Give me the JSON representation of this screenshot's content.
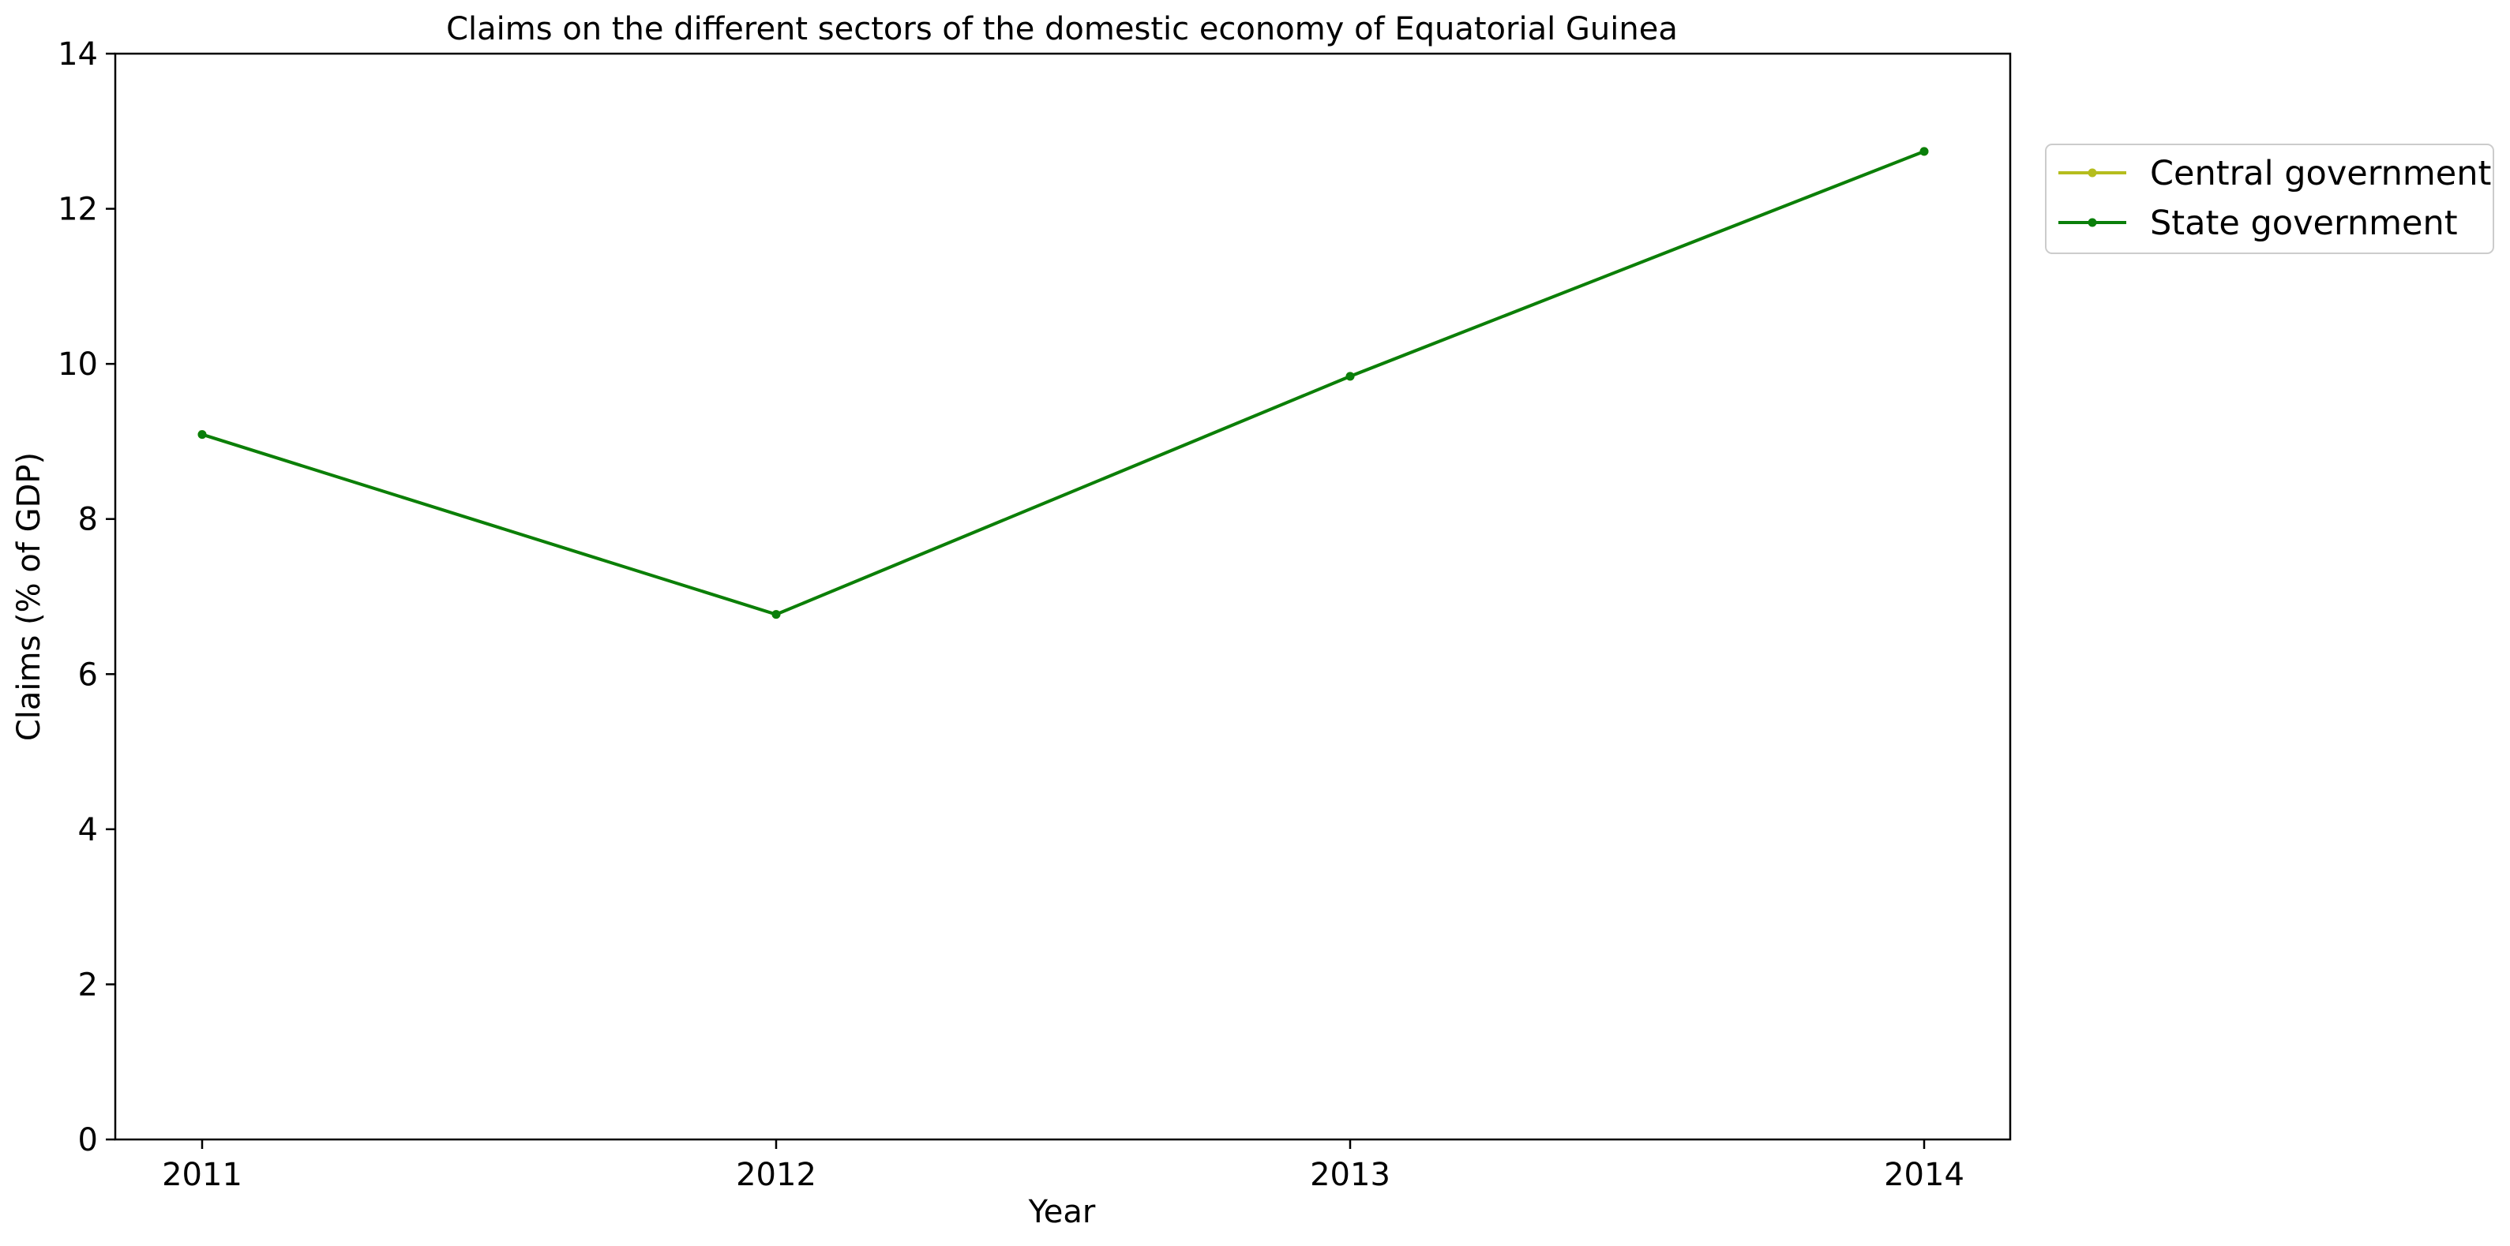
{
  "chart_data": {
    "type": "line",
    "title": "Claims on the different sectors of the domestic economy of Equatorial Guinea",
    "xlabel": "Year",
    "ylabel": "Claims (% of GDP)",
    "x": [
      "2011",
      "2012",
      "2013",
      "2014"
    ],
    "ylim": [
      0,
      14
    ],
    "yticks": [
      "0",
      "2",
      "4",
      "6",
      "8",
      "10",
      "12",
      "14"
    ],
    "grid": false,
    "legend_position": "outside-top-right",
    "series": [
      {
        "name": "Central government",
        "color": "#b5bd1e",
        "values": [
          9.09,
          6.77,
          9.84,
          12.74
        ]
      },
      {
        "name": "State government",
        "color": "#0a7f0a",
        "values": [
          9.09,
          6.77,
          9.84,
          12.74
        ]
      }
    ]
  }
}
